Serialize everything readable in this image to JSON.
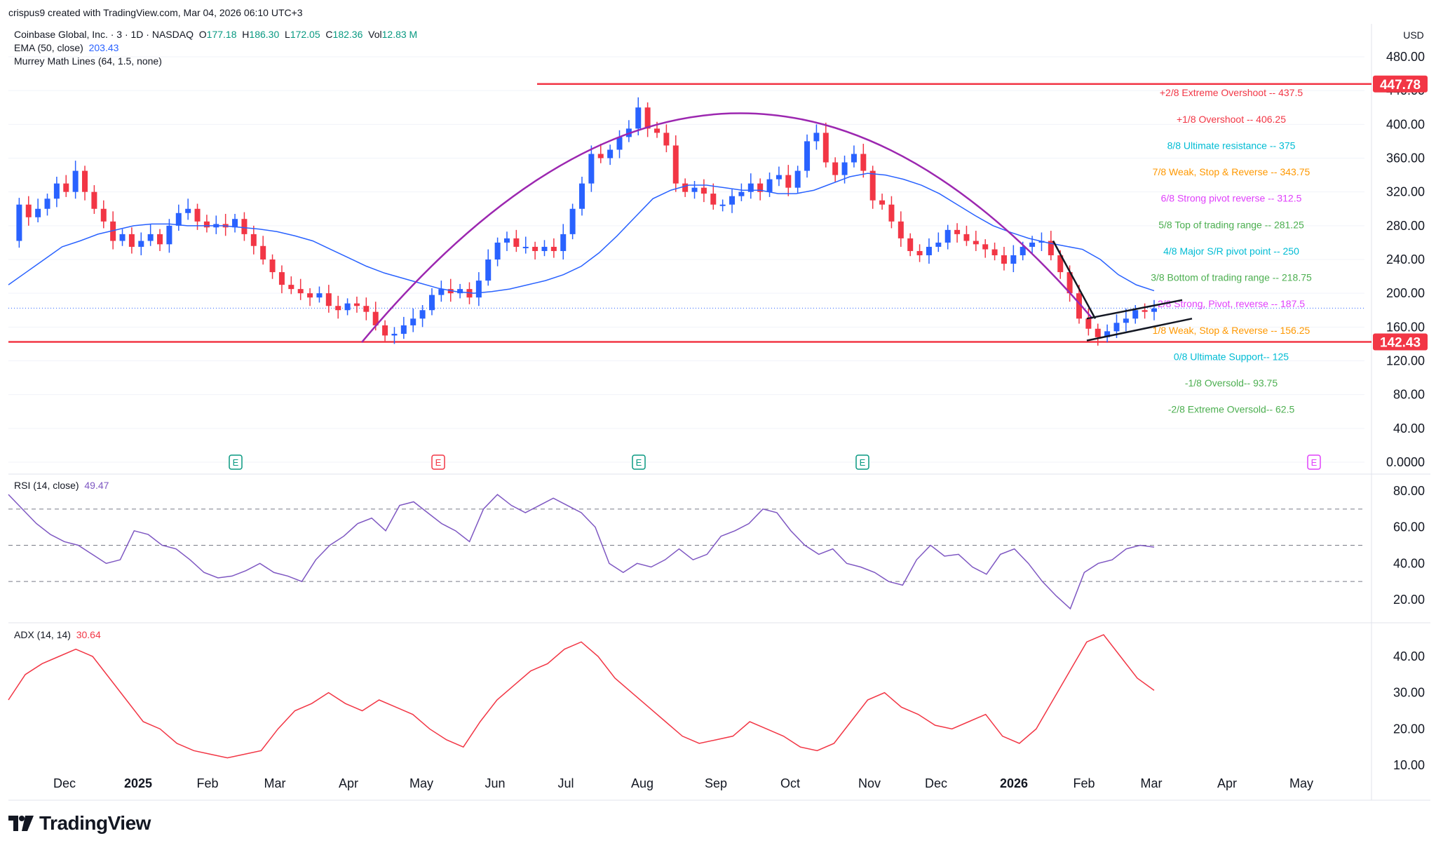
{
  "header": {
    "created_by": "crispus9 created with TradingView.com, Mar 04, 2026 06:10 UTC+3"
  },
  "legend": {
    "symbol": "Coinbase Global, Inc. · 3 · 1D · NASDAQ",
    "open_label": "O",
    "open": "177.18",
    "high_label": "H",
    "high": "186.30",
    "low_label": "L",
    "low": "172.05",
    "close_label": "C",
    "close": "182.36",
    "vol_label": "Vol",
    "vol": "12.83 M",
    "ema_label": "EMA (50, close)",
    "ema_value": "203.43",
    "murrey_label": "Murrey Math Lines (64, 1.5, none)",
    "rsi_label": "RSI (14, close)",
    "rsi_value": "49.47",
    "adx_label": "ADX (14, 14)",
    "adx_value": "30.64"
  },
  "branding": {
    "name": "TradingView"
  },
  "colors": {
    "up": "#089981",
    "up_body": "#2962ff",
    "down": "#f23645",
    "ema": "#2962ff",
    "arc": "#9c27b0",
    "hline": "#f23645",
    "rsi": "#7e57c2",
    "adx": "#f23645",
    "grid": "#f0f3fa",
    "axis_text": "#131722"
  },
  "chart_data": [
    {
      "type": "line",
      "name": "price",
      "y_axis_unit": "USD",
      "ylim": [
        0,
        480
      ],
      "y_ticks": [
        "480.00",
        "440.00",
        "400.00",
        "360.00",
        "320.00",
        "280.00",
        "240.00",
        "200.00",
        "160.00",
        "120.00",
        "80.00",
        "40.00",
        "0.0000"
      ],
      "x_ticks": [
        "Dec",
        "2025",
        "Feb",
        "Mar",
        "Apr",
        "May",
        "Jun",
        "Jul",
        "Aug",
        "Sep",
        "Oct",
        "Nov",
        "Dec",
        "2026",
        "Feb",
        "Mar",
        "Apr",
        "May"
      ],
      "horizontal_levels": [
        {
          "label": "447.78",
          "value": 447.78
        },
        {
          "label": "142.43",
          "value": 142.43
        }
      ],
      "current_price_line": 182.36,
      "murrey_lines": [
        {
          "label": "+2/8 Extreme Overshoot --  437.5",
          "value": 437.5,
          "color": "#f23645"
        },
        {
          "label": "+1/8 Overshoot --  406.25",
          "value": 406.25,
          "color": "#f23645"
        },
        {
          "label": "8/8 Ultimate resistance --  375",
          "value": 375,
          "color": "#00bcd4"
        },
        {
          "label": "7/8 Weak, Stop & Reverse --  343.75",
          "value": 343.75,
          "color": "#ff9800"
        },
        {
          "label": "6/8 Strong pivot reverse --  312.5",
          "value": 312.5,
          "color": "#e040fb"
        },
        {
          "label": "5/8 Top of trading range --  281.25",
          "value": 281.25,
          "color": "#4caf50"
        },
        {
          "label": "4/8 Major S/R pivot point --  250",
          "value": 250,
          "color": "#00bcd4"
        },
        {
          "label": "3/8 Bottom of trading range --  218.75",
          "value": 218.75,
          "color": "#4caf50"
        },
        {
          "label": "2/8 Strong, Pivot, reverse --  187.5",
          "value": 187.5,
          "color": "#e040fb"
        },
        {
          "label": "1/8 Weak, Stop & Reverse --  156.25",
          "value": 156.25,
          "color": "#ff9800"
        },
        {
          "label": "0/8 Ultimate Support--  125",
          "value": 125,
          "color": "#00bcd4"
        },
        {
          "label": "-1/8 Oversold--  93.75",
          "value": 93.75,
          "color": "#4caf50"
        },
        {
          "label": "-2/8 Extreme Oversold--  62.5",
          "value": 62.5,
          "color": "#4caf50"
        }
      ],
      "series": [
        {
          "name": "Coinbase Global, Inc.",
          "values": [
            262,
            305,
            290,
            300,
            312,
            330,
            320,
            345,
            320,
            300,
            285,
            262,
            270,
            255,
            262,
            270,
            258,
            280,
            295,
            300,
            285,
            278,
            282,
            278,
            288,
            270,
            256,
            240,
            225,
            210,
            205,
            200,
            195,
            200,
            185,
            180,
            188,
            185,
            178,
            162,
            150,
            152,
            162,
            170,
            180,
            198,
            205,
            200,
            205,
            195,
            215,
            240,
            260,
            265,
            255,
            255,
            250,
            255,
            250,
            270,
            300,
            330,
            365,
            360,
            370,
            385,
            395,
            420,
            395,
            390,
            375,
            330,
            320,
            325,
            318,
            305,
            305,
            315,
            320,
            330,
            320,
            335,
            340,
            325,
            345,
            380,
            390,
            355,
            340,
            355,
            365,
            345,
            310,
            305,
            285,
            265,
            250,
            245,
            255,
            260,
            275,
            270,
            262,
            258,
            252,
            245,
            235,
            245,
            255,
            260,
            262,
            245,
            225,
            200,
            170,
            158,
            148,
            155,
            165,
            170,
            180,
            178,
            182
          ]
        },
        {
          "name": "EMA (50, close)",
          "values": [
            210,
            225,
            240,
            255,
            262,
            270,
            275,
            280,
            282,
            282,
            280,
            280,
            280,
            278,
            276,
            273,
            268,
            262,
            252,
            242,
            232,
            224,
            218,
            212,
            206,
            202,
            200,
            202,
            205,
            210,
            215,
            222,
            232,
            248,
            268,
            290,
            312,
            322,
            328,
            328,
            325,
            322,
            322,
            318,
            318,
            322,
            330,
            338,
            342,
            340,
            335,
            328,
            318,
            305,
            292,
            280,
            272,
            265,
            260,
            256,
            252,
            240,
            222,
            210,
            203
          ]
        },
        {
          "name": "RSI (14, close)",
          "values": [
            78,
            70,
            62,
            56,
            52,
            50,
            45,
            40,
            42,
            58,
            56,
            50,
            48,
            42,
            35,
            32,
            33,
            36,
            40,
            35,
            33,
            30,
            42,
            50,
            55,
            62,
            65,
            58,
            72,
            74,
            68,
            62,
            58,
            52,
            70,
            78,
            72,
            68,
            72,
            76,
            72,
            68,
            60,
            40,
            35,
            40,
            38,
            42,
            48,
            42,
            45,
            55,
            58,
            62,
            70,
            68,
            58,
            50,
            45,
            48,
            40,
            38,
            35,
            30,
            28,
            42,
            50,
            44,
            45,
            38,
            34,
            45,
            48,
            40,
            30,
            22,
            15,
            35,
            40,
            42,
            48,
            50,
            49
          ]
        },
        {
          "name": "ADX (14, 14)",
          "values": [
            28,
            35,
            38,
            40,
            42,
            40,
            34,
            28,
            22,
            20,
            16,
            14,
            13,
            12,
            13,
            14,
            20,
            25,
            27,
            30,
            27,
            25,
            28,
            26,
            24,
            20,
            17,
            15,
            22,
            28,
            32,
            36,
            38,
            42,
            44,
            40,
            34,
            30,
            26,
            22,
            18,
            16,
            17,
            18,
            22,
            20,
            18,
            15,
            14,
            16,
            22,
            28,
            30,
            26,
            24,
            21,
            20,
            22,
            24,
            18,
            16,
            20,
            28,
            36,
            44,
            46,
            40,
            34,
            30.64
          ]
        }
      ]
    },
    {
      "type": "line",
      "name": "RSI (14, close)",
      "ylim": [
        0,
        100
      ],
      "y_ticks": [
        "80.00",
        "60.00",
        "40.00",
        "20.00"
      ],
      "bands": [
        70,
        50,
        30
      ]
    },
    {
      "type": "line",
      "name": "ADX (14, 14)",
      "ylim": [
        5,
        50
      ],
      "y_ticks": [
        "40.00",
        "30.00",
        "20.00",
        "10.00"
      ]
    }
  ],
  "axis": {
    "currency": "USD"
  }
}
